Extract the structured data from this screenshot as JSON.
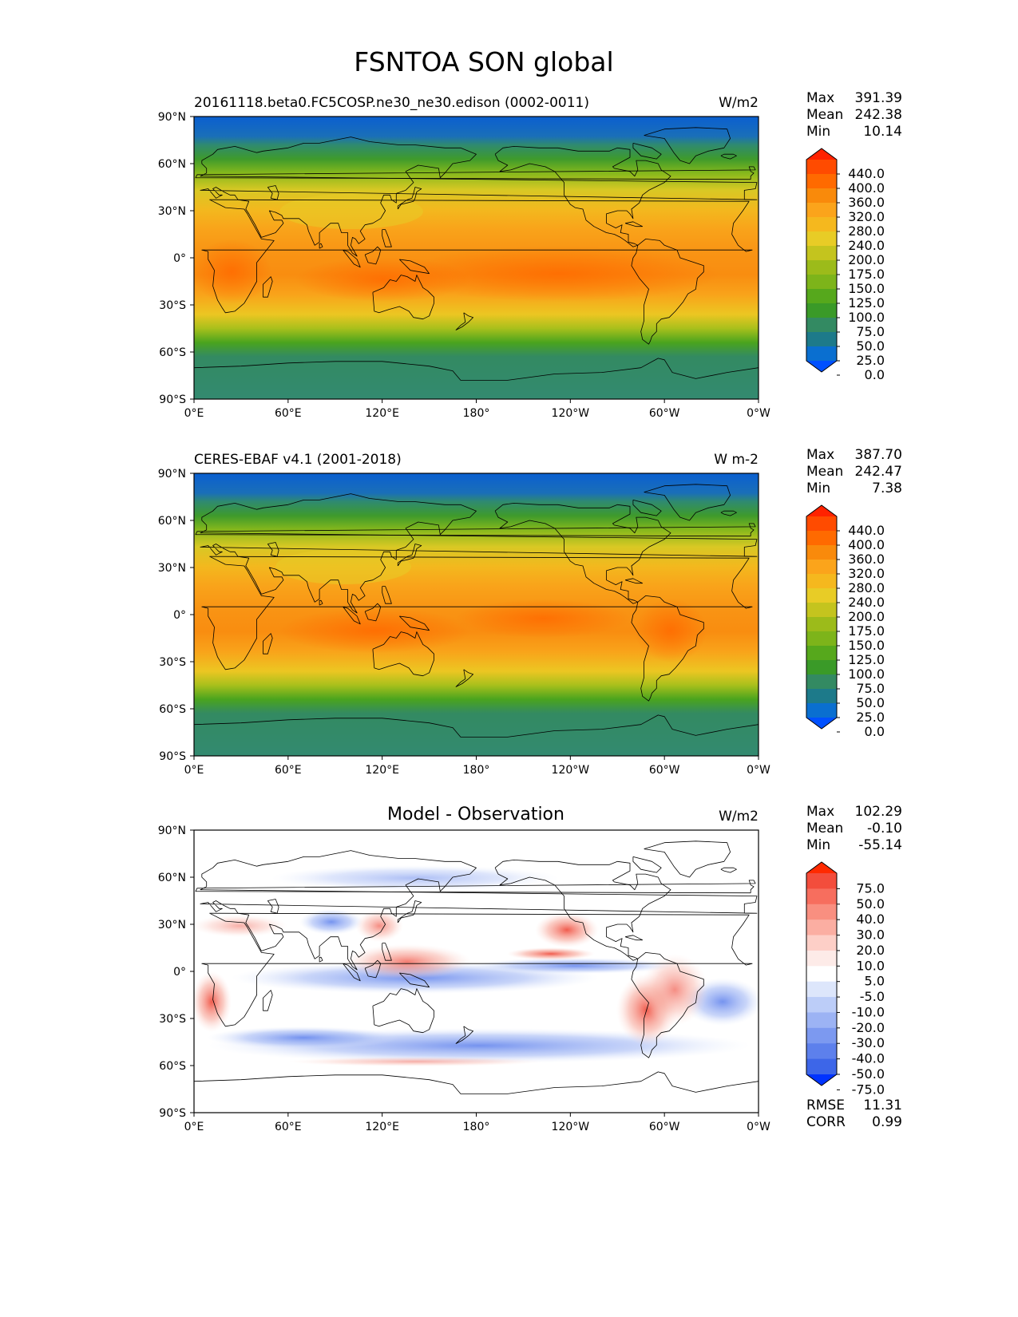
{
  "title": "FSNTOA SON global",
  "colors": {
    "land_outline": "#000000",
    "frame": "#000000"
  },
  "chart_data": [
    {
      "type": "heatmap",
      "title": "20161118.beta0.FC5COSP.ne30_ne30.edison (0002-0011)",
      "units": "W/m2",
      "stats": [
        {
          "label": "Max",
          "value": "391.39"
        },
        {
          "label": "Mean",
          "value": "242.38"
        },
        {
          "label": "Min",
          "value": "10.14"
        }
      ],
      "xlim": [
        0,
        360
      ],
      "ylim": [
        -90,
        90
      ],
      "x_ticks": [
        "0°E",
        "60°E",
        "120°E",
        "180°",
        "120°W",
        "60°W",
        "0°W"
      ],
      "y_ticks": [
        "90°N",
        "60°N",
        "30°N",
        "0°",
        "30°S",
        "60°S",
        "90°S"
      ],
      "levels": [
        "440.0",
        "400.0",
        "360.0",
        "320.0",
        "280.0",
        "240.0",
        "200.0",
        "175.0",
        "150.0",
        "125.0",
        "100.0",
        "75.0",
        "50.0",
        "25.0",
        "0.0"
      ],
      "colorbar_colors": [
        "#ff2200",
        "#ff4b00",
        "#ff6a00",
        "#f98a0b",
        "#fba41b",
        "#f5b81e",
        "#e8cc26",
        "#c4c41e",
        "#9cbb1a",
        "#7db41a",
        "#56a81c",
        "#3a9a28",
        "#338a62",
        "#1d7a8a",
        "#0a6fd0",
        "#0050ff"
      ]
    },
    {
      "type": "heatmap",
      "title": "CERES-EBAF v4.1 (2001-2018)",
      "units": "W m-2",
      "stats": [
        {
          "label": "Max",
          "value": "387.70"
        },
        {
          "label": "Mean",
          "value": "242.47"
        },
        {
          "label": "Min",
          "value": "7.38"
        }
      ],
      "xlim": [
        0,
        360
      ],
      "ylim": [
        -90,
        90
      ],
      "x_ticks": [
        "0°E",
        "60°E",
        "120°E",
        "180°",
        "120°W",
        "60°W",
        "0°W"
      ],
      "y_ticks": [
        "90°N",
        "60°N",
        "30°N",
        "0°",
        "30°S",
        "60°S",
        "90°S"
      ],
      "levels": [
        "440.0",
        "400.0",
        "360.0",
        "320.0",
        "280.0",
        "240.0",
        "200.0",
        "175.0",
        "150.0",
        "125.0",
        "100.0",
        "75.0",
        "50.0",
        "25.0",
        "0.0"
      ],
      "colorbar_colors": [
        "#ff2200",
        "#ff4b00",
        "#ff6a00",
        "#f98a0b",
        "#fba41b",
        "#f5b81e",
        "#e8cc26",
        "#c4c41e",
        "#9cbb1a",
        "#7db41a",
        "#56a81c",
        "#3a9a28",
        "#338a62",
        "#1d7a8a",
        "#0a6fd0",
        "#0050ff"
      ]
    },
    {
      "type": "heatmap",
      "title": "Model - Observation",
      "units": "W/m2",
      "stats": [
        {
          "label": "Max",
          "value": "102.29"
        },
        {
          "label": "Mean",
          "value": "-0.10"
        },
        {
          "label": "Min",
          "value": "-55.14"
        }
      ],
      "extra_stats": [
        {
          "label": "RMSE",
          "value": "11.31"
        },
        {
          "label": "CORR",
          "value": "0.99"
        }
      ],
      "xlim": [
        0,
        360
      ],
      "ylim": [
        -90,
        90
      ],
      "x_ticks": [
        "0°E",
        "60°E",
        "120°E",
        "180°",
        "120°W",
        "60°W",
        "0°W"
      ],
      "y_ticks": [
        "90°N",
        "60°N",
        "30°N",
        "0°",
        "30°S",
        "60°S",
        "90°S"
      ],
      "levels": [
        "75.0",
        "50.0",
        "40.0",
        "30.0",
        "20.0",
        "10.0",
        "5.0",
        "-5.0",
        "-10.0",
        "-20.0",
        "-30.0",
        "-40.0",
        "-50.0",
        "-75.0"
      ],
      "colorbar_colors": [
        "#ff2a00",
        "#f34d3c",
        "#f76e5e",
        "#f98f80",
        "#fbaea2",
        "#fdcfc7",
        "#fdebe8",
        "#ffffff",
        "#dde6fb",
        "#bccdf8",
        "#9cb3f4",
        "#7c99f0",
        "#5d80ec",
        "#3d66e8",
        "#0033ff"
      ]
    }
  ]
}
